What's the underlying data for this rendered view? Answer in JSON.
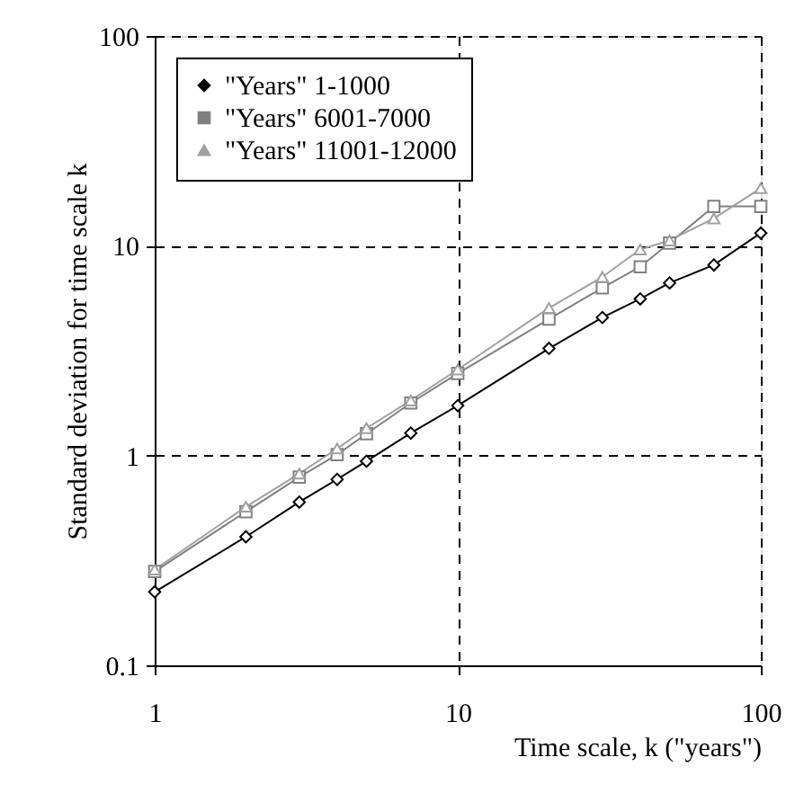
{
  "chart_data": {
    "type": "line",
    "xlabel": "Time scale, k  (\"years\")",
    "ylabel": "Standard deviation for time scale k",
    "x": [
      1,
      2,
      3,
      4,
      5,
      7,
      10,
      20,
      30,
      40,
      50,
      70,
      100
    ],
    "series": [
      {
        "name": "\"Years\" 1-1000",
        "color": "#000000",
        "marker": "diamond",
        "values": [
          0.224,
          0.41,
          0.6,
          0.77,
          0.94,
          1.28,
          1.73,
          3.24,
          4.55,
          5.58,
          6.65,
          8.1,
          11.5
        ]
      },
      {
        "name": "\"Years\" 6001-7000",
        "color": "#808080",
        "marker": "square",
        "values": [
          0.28,
          0.54,
          0.79,
          1.01,
          1.27,
          1.78,
          2.46,
          4.47,
          6.3,
          7.94,
          10.3,
          15.4,
          15.4
        ]
      },
      {
        "name": "\"Years\" 11001-12000",
        "color": "#a0a0a0",
        "marker": "triangle",
        "values": [
          0.286,
          0.57,
          0.82,
          1.08,
          1.35,
          1.83,
          2.57,
          5.05,
          7.1,
          9.6,
          10.6,
          13.5,
          18.8
        ]
      }
    ],
    "log": "xy",
    "xlim": [
      1,
      100
    ],
    "ylim": [
      0.1,
      100
    ],
    "xticks": [
      1,
      10,
      100
    ],
    "yticks": [
      0.1,
      1,
      10,
      100
    ],
    "grid": true,
    "legend": "top left",
    "line_style": "solid"
  }
}
